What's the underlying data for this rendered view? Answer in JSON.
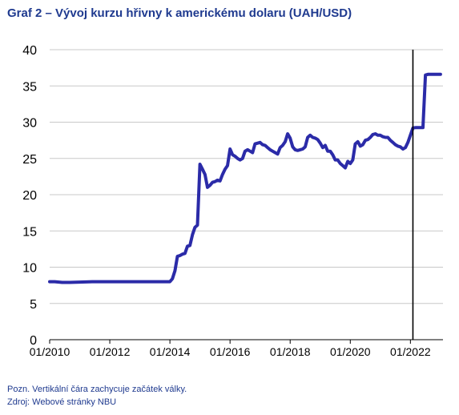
{
  "title": "Graf 2 – Vývoj kurzu hřivny k americkému dolaru (UAH/USD)",
  "notes": {
    "note": "Pozn. Vertikální čára zachycuje začátek války.",
    "source": "Zdroj: Webové stránky NBU"
  },
  "colors": {
    "series": "#2b2ba8",
    "title": "#1f3a8f",
    "grid": "#c8c8c8",
    "event_line": "#000000"
  },
  "chart_data": {
    "type": "line",
    "title": "Graf 2 – Vývoj kurzu hřivny k americkému dolaru (UAH/USD)",
    "xlabel": "",
    "ylabel": "",
    "ylim": [
      0,
      40
    ],
    "yticks": [
      0,
      5,
      10,
      15,
      20,
      25,
      30,
      35,
      40
    ],
    "xlim": [
      "2010-01",
      "2023-02"
    ],
    "xticks": [
      "01/2010",
      "01/2012",
      "01/2014",
      "01/2016",
      "01/2018",
      "01/2020",
      "01/2022"
    ],
    "grid": true,
    "event_line": {
      "x": "2022-02"
    },
    "series": [
      {
        "x": [
          "2010-01",
          "2010-03",
          "2010-06",
          "2010-09",
          "2011-01",
          "2011-06",
          "2012-01",
          "2012-06",
          "2013-01",
          "2013-06",
          "2014-01",
          "2014-02",
          "2014-03",
          "2014-04",
          "2014-05",
          "2014-06",
          "2014-07",
          "2014-08",
          "2014-09",
          "2014-10",
          "2014-11",
          "2014-12",
          "2015-01",
          "2015-02",
          "2015-03",
          "2015-04",
          "2015-05",
          "2015-06",
          "2015-07",
          "2015-08",
          "2015-09",
          "2015-10",
          "2015-11",
          "2015-12",
          "2016-01",
          "2016-02",
          "2016-03",
          "2016-04",
          "2016-05",
          "2016-06",
          "2016-07",
          "2016-08",
          "2016-09",
          "2016-10",
          "2016-11",
          "2016-12",
          "2017-01",
          "2017-02",
          "2017-03",
          "2017-04",
          "2017-05",
          "2017-06",
          "2017-07",
          "2017-08",
          "2017-09",
          "2017-10",
          "2017-11",
          "2017-12",
          "2018-01",
          "2018-02",
          "2018-03",
          "2018-04",
          "2018-05",
          "2018-06",
          "2018-07",
          "2018-08",
          "2018-09",
          "2018-10",
          "2018-11",
          "2018-12",
          "2019-01",
          "2019-02",
          "2019-03",
          "2019-04",
          "2019-05",
          "2019-06",
          "2019-07",
          "2019-08",
          "2019-09",
          "2019-10",
          "2019-11",
          "2019-12",
          "2020-01",
          "2020-02",
          "2020-03",
          "2020-04",
          "2020-05",
          "2020-06",
          "2020-07",
          "2020-08",
          "2020-09",
          "2020-10",
          "2020-11",
          "2020-12",
          "2021-01",
          "2021-02",
          "2021-03",
          "2021-04",
          "2021-05",
          "2021-06",
          "2021-07",
          "2021-08",
          "2021-09",
          "2021-10",
          "2021-11",
          "2021-12",
          "2022-01",
          "2022-02",
          "2022-03",
          "2022-04",
          "2022-05",
          "2022-06",
          "2022-07",
          "2022-08",
          "2022-09",
          "2022-10",
          "2022-11",
          "2022-12",
          "2023-01"
        ],
        "values": [
          8.0,
          8.0,
          7.9,
          7.9,
          7.95,
          8.0,
          8.0,
          8.0,
          8.0,
          8.0,
          8.0,
          8.4,
          9.5,
          11.5,
          11.6,
          11.8,
          11.9,
          12.9,
          13.0,
          14.5,
          15.5,
          15.8,
          24.2,
          23.5,
          22.8,
          21.0,
          21.3,
          21.7,
          21.8,
          22.0,
          21.9,
          22.8,
          23.5,
          24.0,
          26.3,
          25.5,
          25.3,
          25.0,
          24.8,
          25.0,
          26.0,
          26.2,
          26.0,
          25.8,
          27.0,
          27.1,
          27.2,
          26.9,
          26.8,
          26.5,
          26.2,
          26.0,
          25.8,
          25.6,
          26.5,
          26.8,
          27.3,
          28.4,
          27.8,
          26.6,
          26.2,
          26.1,
          26.2,
          26.3,
          26.6,
          27.9,
          28.2,
          27.9,
          27.8,
          27.6,
          27.1,
          26.5,
          26.8,
          26.0,
          26.0,
          25.5,
          24.8,
          24.8,
          24.3,
          24.0,
          23.7,
          24.6,
          24.3,
          24.8,
          27.0,
          27.3,
          26.7,
          26.9,
          27.5,
          27.6,
          27.9,
          28.3,
          28.4,
          28.2,
          28.2,
          28.0,
          27.9,
          27.9,
          27.5,
          27.2,
          26.9,
          26.7,
          26.6,
          26.3,
          26.5,
          27.2,
          28.2,
          29.2,
          29.25,
          29.25,
          29.25,
          29.25,
          36.5,
          36.6,
          36.6,
          36.6,
          36.6,
          36.6,
          36.6
        ]
      }
    ]
  }
}
